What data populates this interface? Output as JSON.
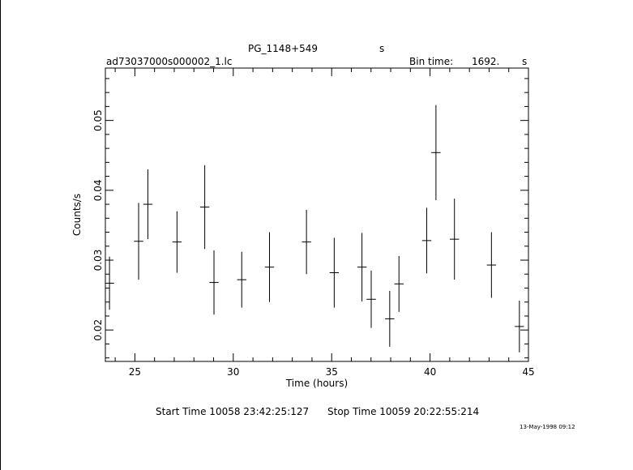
{
  "plot_title": "PG_1148+549",
  "title_suffix": "s",
  "file_name": "ad73037000s000002_1.lc",
  "bin_time_label": "Bin time:",
  "bin_time_value": "1692.",
  "bin_time_unit": "s",
  "start_time": "Start Time 10058 23:42:25:127",
  "stop_time": "Stop Time 10059 20:22:55:214",
  "timestamp": "13-May-1998 09:12",
  "colors": {
    "foreground": "#000000",
    "background": "#ffffff"
  },
  "chart_data": {
    "type": "scatter",
    "title": "PG_1148+549",
    "xlabel": "Time (hours)",
    "ylabel": "Counts/s",
    "xlim": [
      23.5,
      45
    ],
    "ylim": [
      0.0155,
      0.0575
    ],
    "xticks": [
      25,
      30,
      35,
      40,
      45
    ],
    "yticks": [
      0.02,
      0.03,
      0.04,
      0.05
    ],
    "xtick_labels": [
      "25",
      "30",
      "35",
      "40",
      "45"
    ],
    "ytick_labels": [
      "0.02",
      "0.03",
      "0.04",
      "0.05"
    ],
    "grid": false,
    "points": [
      {
        "x": 23.71,
        "xerr": 0.235,
        "y": 0.0267,
        "yerr": 0.0038
      },
      {
        "x": 25.19,
        "xerr": 0.235,
        "y": 0.0327,
        "yerr": 0.0055
      },
      {
        "x": 25.66,
        "xerr": 0.235,
        "y": 0.038,
        "yerr": 0.005
      },
      {
        "x": 27.14,
        "xerr": 0.235,
        "y": 0.0326,
        "yerr": 0.0044
      },
      {
        "x": 28.55,
        "xerr": 0.235,
        "y": 0.0376,
        "yerr": 0.006
      },
      {
        "x": 29.02,
        "xerr": 0.235,
        "y": 0.0268,
        "yerr": 0.0046
      },
      {
        "x": 30.43,
        "xerr": 0.235,
        "y": 0.0272,
        "yerr": 0.004
      },
      {
        "x": 31.84,
        "xerr": 0.235,
        "y": 0.029,
        "yerr": 0.005
      },
      {
        "x": 33.72,
        "xerr": 0.235,
        "y": 0.0326,
        "yerr": 0.0046
      },
      {
        "x": 35.13,
        "xerr": 0.235,
        "y": 0.0282,
        "yerr": 0.005
      },
      {
        "x": 36.54,
        "xerr": 0.235,
        "y": 0.029,
        "yerr": 0.0049
      },
      {
        "x": 37.01,
        "xerr": 0.235,
        "y": 0.0244,
        "yerr": 0.0041
      },
      {
        "x": 37.95,
        "xerr": 0.235,
        "y": 0.0216,
        "yerr": 0.004
      },
      {
        "x": 38.42,
        "xerr": 0.235,
        "y": 0.0266,
        "yerr": 0.004
      },
      {
        "x": 39.83,
        "xerr": 0.235,
        "y": 0.0328,
        "yerr": 0.0047
      },
      {
        "x": 40.3,
        "xerr": 0.235,
        "y": 0.0454,
        "yerr": 0.0068
      },
      {
        "x": 41.24,
        "xerr": 0.235,
        "y": 0.033,
        "yerr": 0.0058
      },
      {
        "x": 43.12,
        "xerr": 0.235,
        "y": 0.0293,
        "yerr": 0.0047
      },
      {
        "x": 44.54,
        "xerr": 0.235,
        "y": 0.0205,
        "yerr": 0.0037
      }
    ]
  }
}
